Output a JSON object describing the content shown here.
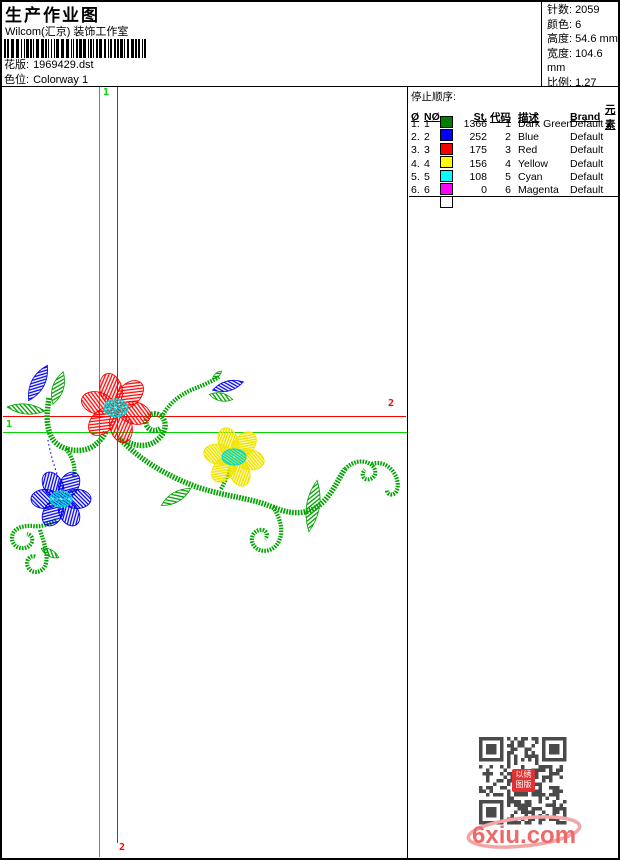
{
  "title": "生产作业图",
  "org": "Wilcom(汇京) 装饰工作室",
  "design_fields": [
    {
      "label": "花版:",
      "value": "1969429.dst"
    },
    {
      "label": "色位:",
      "value": "Colorway 1"
    }
  ],
  "info_fields": [
    {
      "label": "针数:",
      "value": "2059"
    },
    {
      "label": "颜色:",
      "value": "6"
    },
    {
      "label": "高度:",
      "value": "54.6 mm"
    },
    {
      "label": "宽度:",
      "value": "104.6 mm"
    },
    {
      "label": "比例:",
      "value": "1.27"
    }
  ],
  "stop_sequence": {
    "title": "停止顺序:",
    "headers": {
      "seq": "Ø",
      "needle": "NØ",
      "st": "St.",
      "code": "代码",
      "desc": "描述",
      "brand": "Brand",
      "element": "元素"
    },
    "rows": [
      {
        "seq": "1.",
        "needle": "1",
        "swatch": "#008000",
        "st": "1366",
        "code": "1",
        "desc": "Dark Green",
        "brand": "Default",
        "element": ""
      },
      {
        "seq": "2.",
        "needle": "2",
        "swatch": "#0000ff",
        "st": "252",
        "code": "2",
        "desc": "Blue",
        "brand": "Default",
        "element": ""
      },
      {
        "seq": "3.",
        "needle": "3",
        "swatch": "#ff0000",
        "st": "175",
        "code": "3",
        "desc": "Red",
        "brand": "Default",
        "element": ""
      },
      {
        "seq": "4.",
        "needle": "4",
        "swatch": "#ffff00",
        "st": "156",
        "code": "4",
        "desc": "Yellow",
        "brand": "Default",
        "element": ""
      },
      {
        "seq": "5.",
        "needle": "5",
        "swatch": "#00ffff",
        "st": "108",
        "code": "5",
        "desc": "Cyan",
        "brand": "Default",
        "element": ""
      },
      {
        "seq": "6.",
        "needle": "6",
        "swatch": "#ff00ff",
        "st": "0",
        "code": "6",
        "desc": "Magenta",
        "brand": "Default",
        "element": ""
      }
    ]
  },
  "markers": {
    "start_top": "1",
    "start_left": "1",
    "end_bottom": "2",
    "end_right": "2"
  },
  "design_colors": {
    "vine_green": "#00a300",
    "flower_red": "#ff0000",
    "flower_blue": "#0000f0",
    "flower_yellow": "#f0e400",
    "center_cyan": "#00d8d8",
    "guide_green": "#00d800",
    "guide_red": "#ff0000"
  },
  "watermark": {
    "text": "6xiu.com",
    "color": "#ee6a6a"
  },
  "qr_stamp": "以绣图版"
}
